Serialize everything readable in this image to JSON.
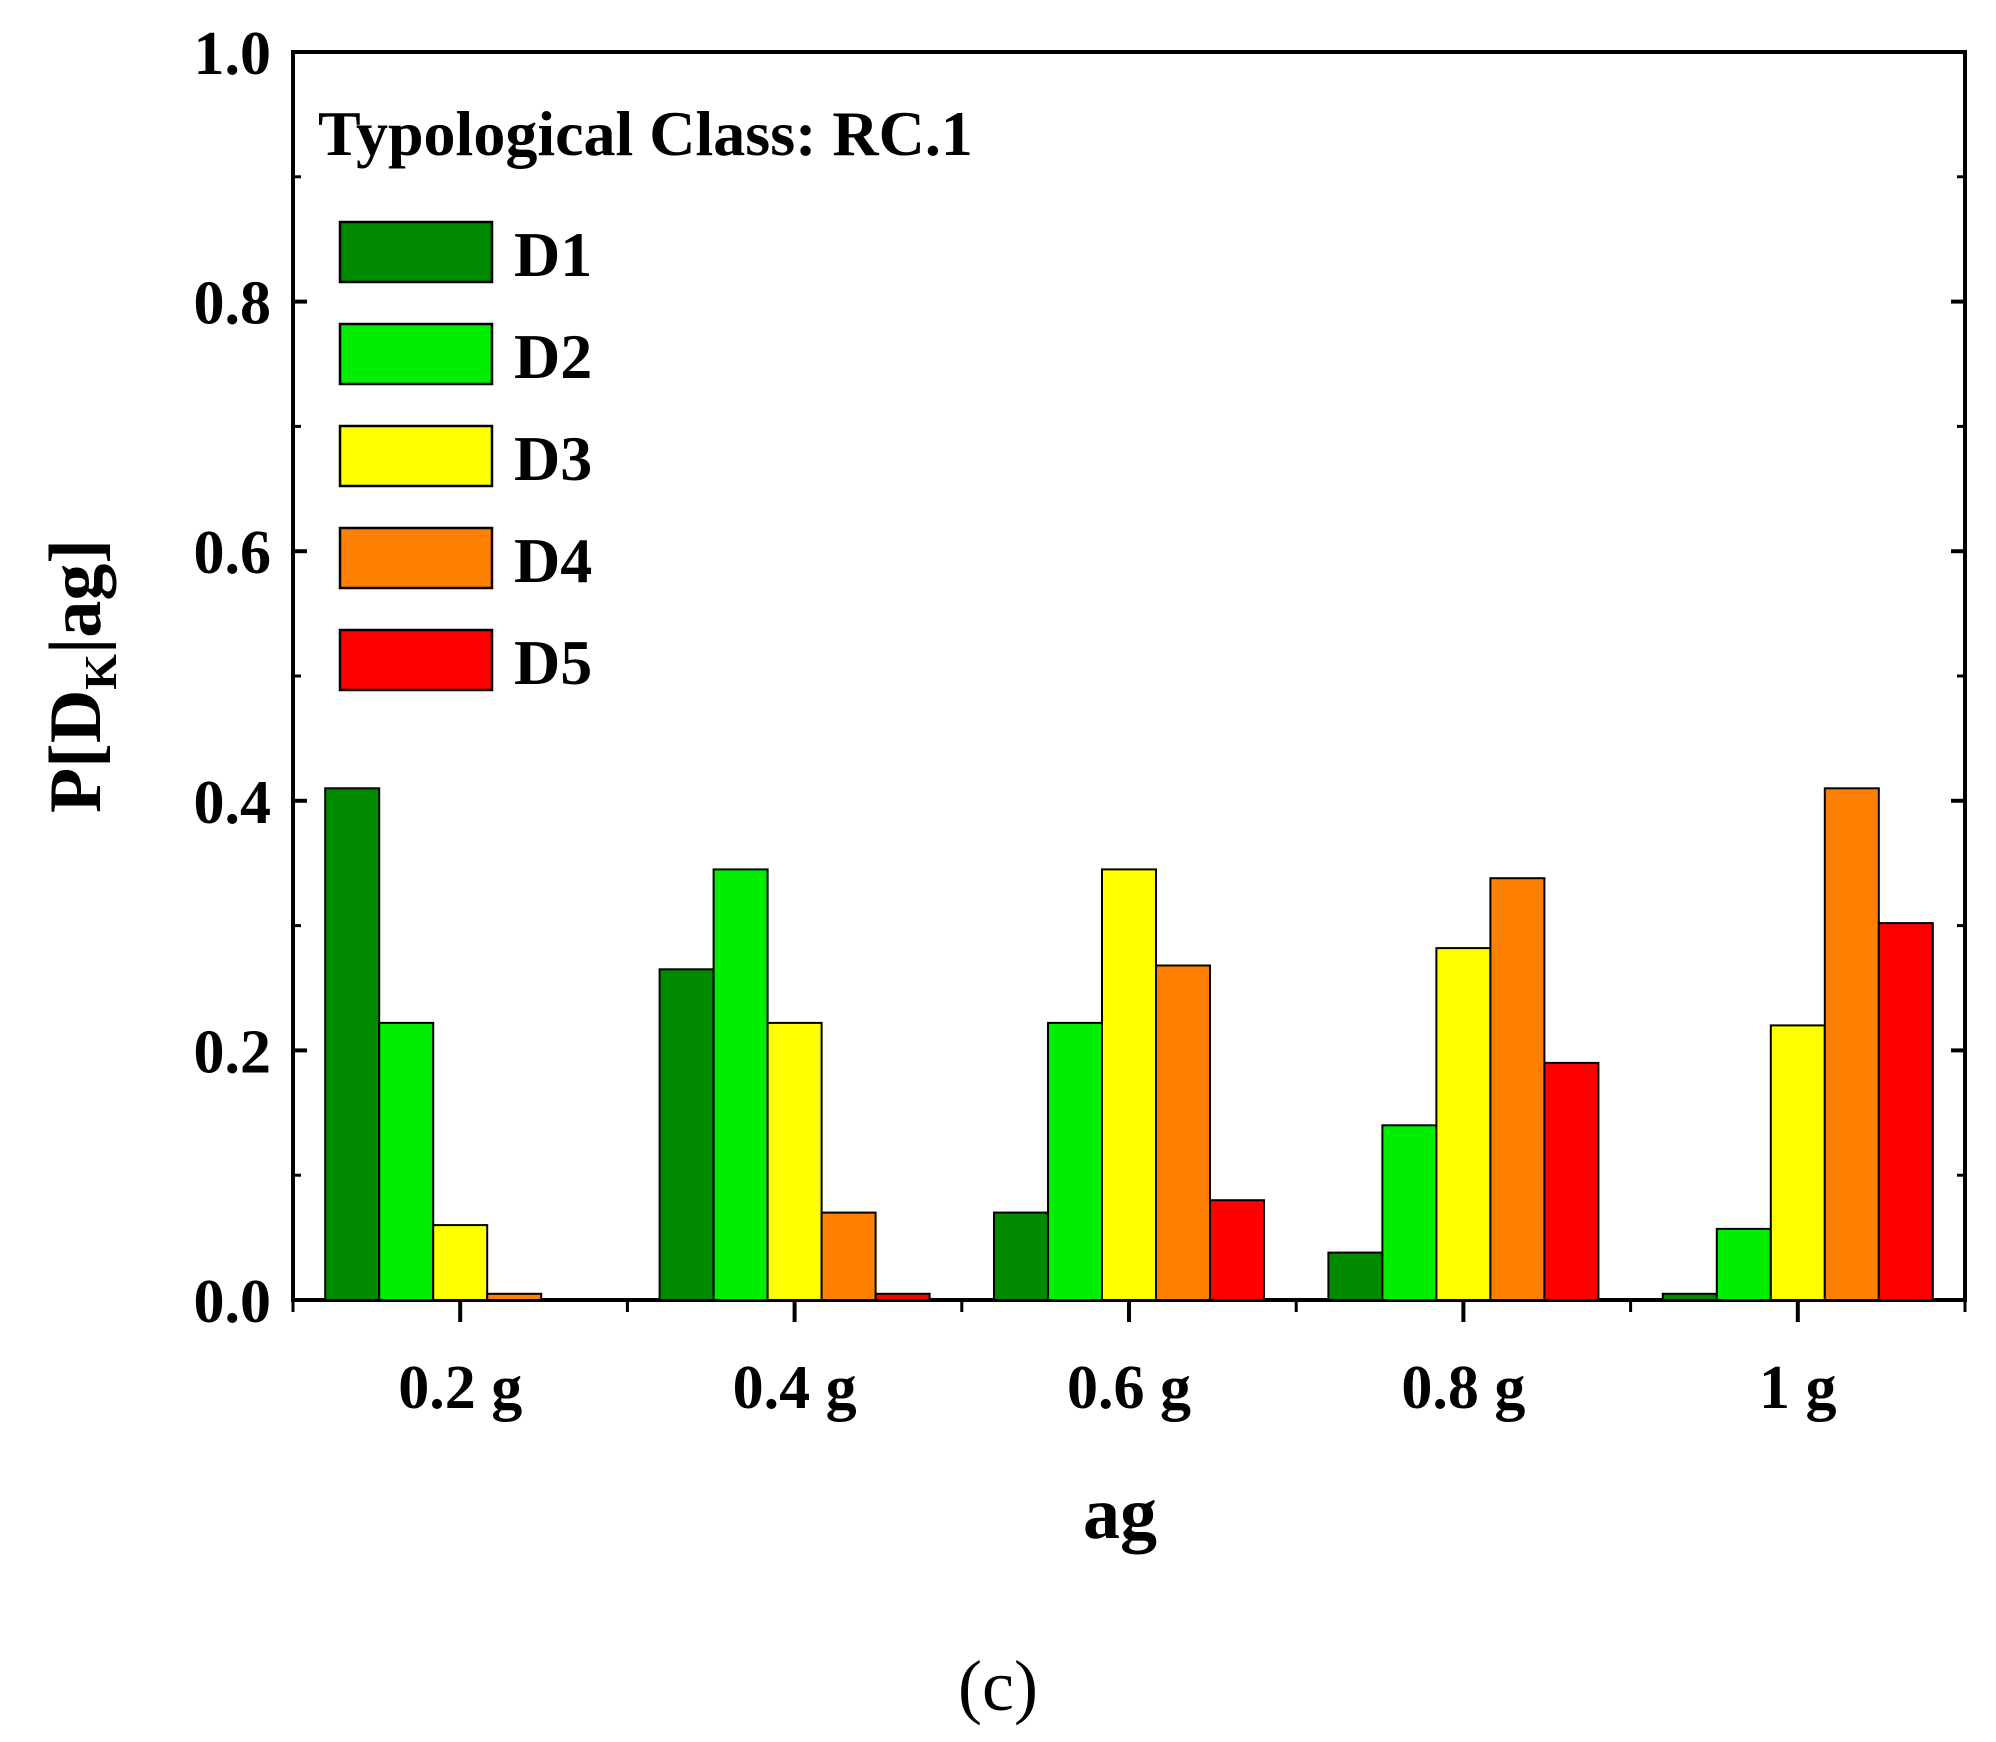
{
  "chart_data": {
    "type": "bar",
    "annotation": "Typological Class: RC.1",
    "xlabel": "ag",
    "ylabel_main": "P[D",
    "ylabel_sub": "K",
    "ylabel_tail": "|ag]",
    "categories": [
      "0.2 g",
      "0.4 g",
      "0.6 g",
      "0.8 g",
      "1 g"
    ],
    "ylim": [
      0,
      1.0
    ],
    "yticks": [
      "0.0",
      "0.2",
      "0.4",
      "0.6",
      "0.8",
      "1.0"
    ],
    "legend_position": "top-left",
    "series": [
      {
        "name": "D1",
        "color": "#008a00",
        "values": [
          0.41,
          0.265,
          0.07,
          0.038,
          0.005
        ]
      },
      {
        "name": "D2",
        "color": "#00ee00",
        "values": [
          0.222,
          0.345,
          0.222,
          0.14,
          0.057
        ]
      },
      {
        "name": "D3",
        "color": "#ffff00",
        "values": [
          0.06,
          0.222,
          0.345,
          0.282,
          0.22
        ]
      },
      {
        "name": "D4",
        "color": "#ff8000",
        "values": [
          0.005,
          0.07,
          0.268,
          0.338,
          0.41
        ]
      },
      {
        "name": "D5",
        "color": "#ff0000",
        "values": [
          0.0,
          0.005,
          0.08,
          0.19,
          0.302
        ]
      }
    ]
  },
  "panel_label": "(c)"
}
